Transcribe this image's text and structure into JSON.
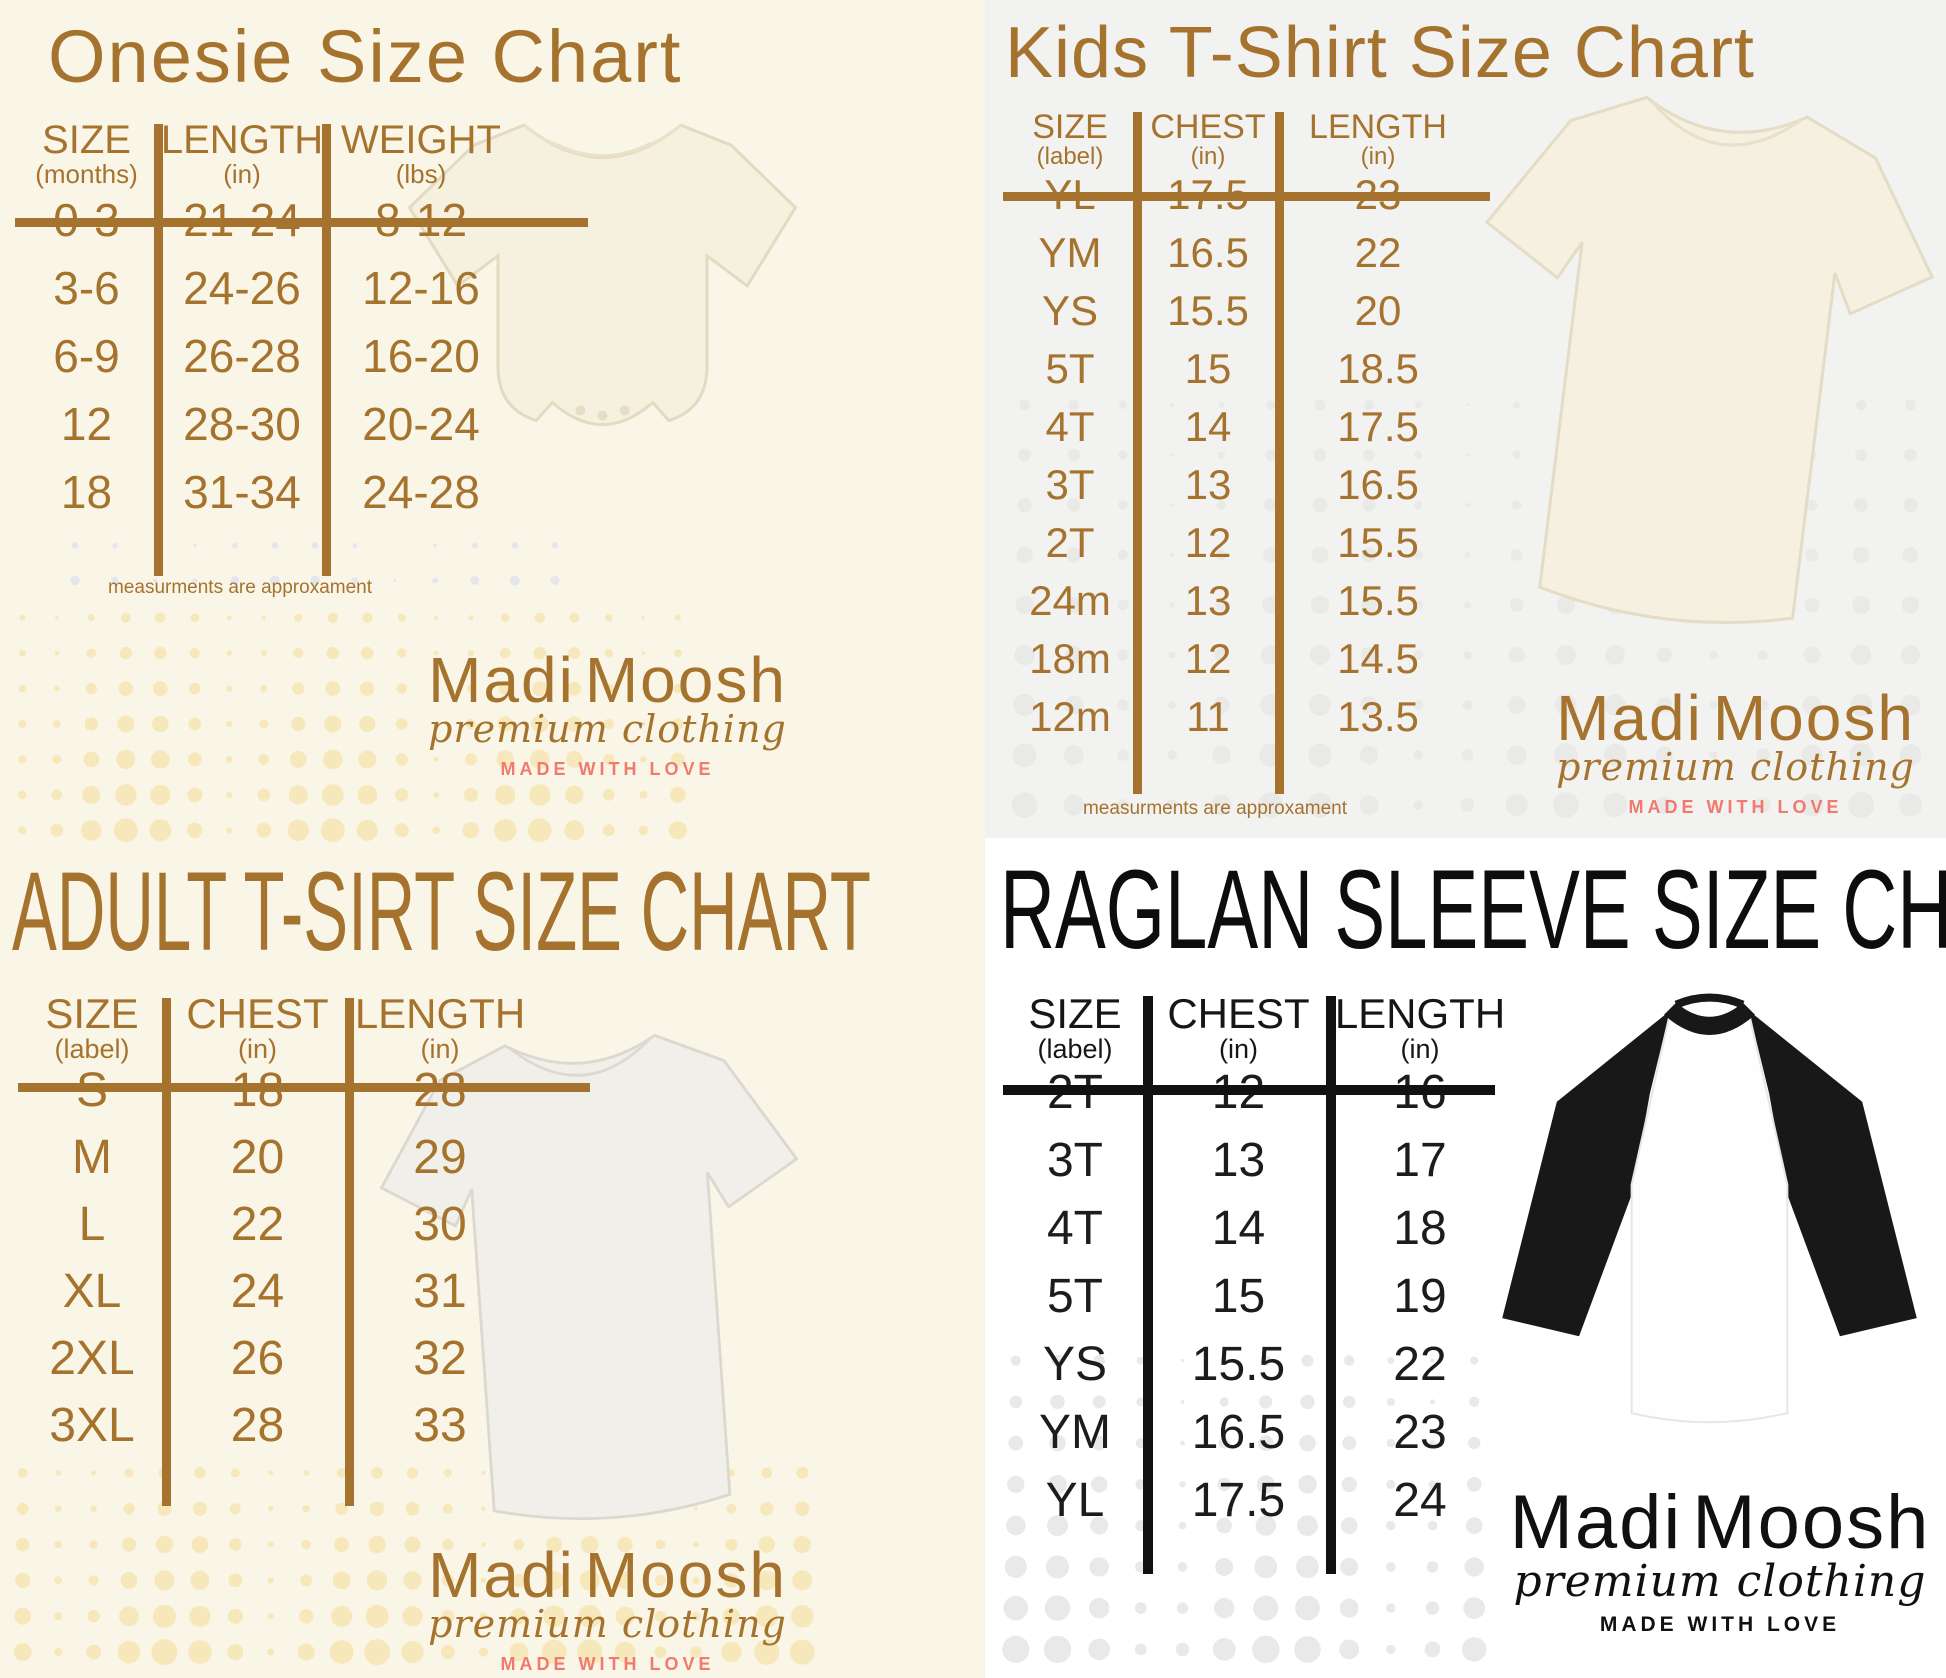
{
  "branding": {
    "name_first": "Madi",
    "name_second": "Moosh",
    "tagline": "premium clothing",
    "motto": "MADE WITH LOVE"
  },
  "note": "measurments are approxament",
  "colors": {
    "brown_text": "#a5732e",
    "cream_background": "#faf6e7",
    "gray_background": "#f2f2f1",
    "white_background": "#ffffff",
    "black_text": "#161616",
    "salmon_motto": "#f07a6e",
    "yellow_dots": "#f7e8bc",
    "gray_dots": "#e9e9e7"
  },
  "chart_data": [
    {
      "id": "onesie",
      "type": "table",
      "title": "Onesie Size Chart",
      "columns": [
        {
          "label": "SIZE",
          "unit": "(months)"
        },
        {
          "label": "LENGTH",
          "unit": "(in)"
        },
        {
          "label": "WEIGHT",
          "unit": "(lbs)"
        }
      ],
      "rows": [
        [
          "0-3",
          "21-24",
          "8-12"
        ],
        [
          "3-6",
          "24-26",
          "12-16"
        ],
        [
          "6-9",
          "26-28",
          "16-20"
        ],
        [
          "12",
          "28-30",
          "20-24"
        ],
        [
          "18",
          "31-34",
          "24-28"
        ]
      ],
      "note": "measurments are approxament"
    },
    {
      "id": "kids_tshirt",
      "type": "table",
      "title": "Kids T-Shirt Size Chart",
      "columns": [
        {
          "label": "SIZE",
          "unit": "(label)"
        },
        {
          "label": "CHEST",
          "unit": "(in)"
        },
        {
          "label": "LENGTH",
          "unit": "(in)"
        }
      ],
      "rows": [
        [
          "YL",
          "17.5",
          "23"
        ],
        [
          "YM",
          "16.5",
          "22"
        ],
        [
          "YS",
          "15.5",
          "20"
        ],
        [
          "5T",
          "15",
          "18.5"
        ],
        [
          "4T",
          "14",
          "17.5"
        ],
        [
          "3T",
          "13",
          "16.5"
        ],
        [
          "2T",
          "12",
          "15.5"
        ],
        [
          "24m",
          "13",
          "15.5"
        ],
        [
          "18m",
          "12",
          "14.5"
        ],
        [
          "12m",
          "11",
          "13.5"
        ]
      ],
      "note": "measurments are approxament"
    },
    {
      "id": "adult_tshirt",
      "type": "table",
      "title": "ADULT T-SIRT SIZE CHART",
      "columns": [
        {
          "label": "SIZE",
          "unit": "(label)"
        },
        {
          "label": "CHEST",
          "unit": "(in)"
        },
        {
          "label": "LENGTH",
          "unit": "(in)"
        }
      ],
      "rows": [
        [
          "S",
          "18",
          "28"
        ],
        [
          "M",
          "20",
          "29"
        ],
        [
          "L",
          "22",
          "30"
        ],
        [
          "XL",
          "24",
          "31"
        ],
        [
          "2XL",
          "26",
          "32"
        ],
        [
          "3XL",
          "28",
          "33"
        ]
      ]
    },
    {
      "id": "raglan_sleeve",
      "type": "table",
      "title": "RAGLAN SLEEVE SIZE CHART",
      "columns": [
        {
          "label": "SIZE",
          "unit": "(label)"
        },
        {
          "label": "CHEST",
          "unit": "(in)"
        },
        {
          "label": "LENGTH",
          "unit": "(in)"
        }
      ],
      "rows": [
        [
          "2T",
          "12",
          "16"
        ],
        [
          "3T",
          "13",
          "17"
        ],
        [
          "4T",
          "14",
          "18"
        ],
        [
          "5T",
          "15",
          "19"
        ],
        [
          "YS",
          "15.5",
          "22"
        ],
        [
          "YM",
          "16.5",
          "23"
        ],
        [
          "YL",
          "17.5",
          "24"
        ]
      ]
    }
  ]
}
